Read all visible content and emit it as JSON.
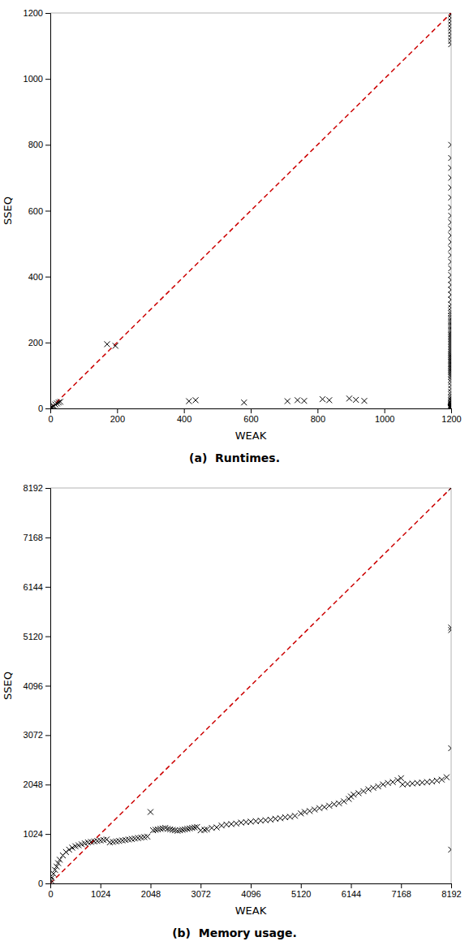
{
  "chart_data": [
    {
      "type": "scatter",
      "title": "(a)  Runtimes.",
      "x_label": "WEAK",
      "y_label": "SSEQ",
      "xlim": [
        0,
        1200
      ],
      "ylim": [
        0,
        1200
      ],
      "xticks": [
        0,
        200,
        400,
        600,
        800,
        1000,
        1200
      ],
      "yticks": [
        0,
        200,
        400,
        600,
        800,
        1000,
        1200
      ],
      "series": [
        {
          "type": "scatter",
          "marker": "x",
          "color": "#000000",
          "x": [
            2,
            4,
            6,
            8,
            10,
            15,
            20,
            25,
            30,
            170,
            195,
            415,
            435,
            580,
            710,
            740,
            760,
            815,
            835,
            895,
            915,
            940,
            1200,
            1200,
            1200,
            1200,
            1200,
            1200,
            1200,
            1200,
            1200,
            1200,
            1200,
            1200,
            1200,
            1200,
            1200,
            1200,
            1200,
            1200,
            1200,
            1200,
            1200,
            1200,
            1200,
            1200,
            1200,
            1200,
            1200,
            1200,
            1200,
            1200,
            1200,
            1200,
            1200,
            1200,
            1200,
            1200,
            1200,
            1200,
            1200,
            1200,
            1200,
            1200,
            1200,
            1200,
            1200,
            1200,
            1200,
            1200,
            1200,
            1200,
            1200,
            1200,
            1200,
            1200,
            1200,
            1200,
            1200,
            1200,
            1200,
            1200,
            1200,
            1200,
            1200,
            1200,
            1200,
            1200,
            1200,
            1200,
            1200,
            1200,
            1200,
            1200,
            1200,
            1200,
            1200,
            1200,
            1200,
            1200,
            1200,
            1200,
            1200,
            1200,
            1200,
            1200,
            1200,
            1200,
            1200,
            1200,
            1200,
            1200,
            1200,
            1200,
            1200,
            1200,
            1200,
            1200,
            1200,
            1200,
            1200,
            1200,
            1200,
            1200,
            1200,
            1200,
            1200,
            1200,
            1200,
            1200,
            1200,
            1200
          ],
          "values": [
            2,
            3,
            4,
            6,
            8,
            12,
            15,
            18,
            20,
            195,
            190,
            22,
            25,
            18,
            22,
            25,
            23,
            28,
            25,
            30,
            26,
            23,
            1195,
            1185,
            1175,
            1165,
            1155,
            1145,
            1135,
            1125,
            1115,
            1105,
            800,
            760,
            730,
            700,
            670,
            640,
            610,
            585,
            565,
            545,
            525,
            505,
            485,
            465,
            445,
            425,
            405,
            390,
            375,
            360,
            345,
            330,
            315,
            305,
            295,
            288,
            281,
            274,
            268,
            262,
            256,
            250,
            244,
            238,
            232,
            226,
            221,
            216,
            211,
            206,
            201,
            196,
            191,
            186,
            181,
            176,
            171,
            166,
            162,
            158,
            154,
            150,
            146,
            142,
            138,
            134,
            130,
            126,
            122,
            118,
            114,
            110,
            105,
            100,
            95,
            88,
            80,
            70,
            60,
            50,
            42,
            35,
            30,
            25,
            22,
            18,
            15,
            12,
            10,
            8,
            6,
            5,
            5,
            4,
            4,
            3,
            3,
            3,
            2,
            2,
            2,
            2,
            1,
            1,
            1,
            1,
            1,
            1,
            1,
            1
          ]
        },
        {
          "type": "line",
          "line_style": "dashed",
          "color": "#cc0000",
          "x": [
            0,
            1200
          ],
          "values": [
            0,
            1200
          ]
        }
      ]
    },
    {
      "type": "scatter",
      "title": "(b)  Memory usage.",
      "x_label": "WEAK",
      "y_label": "SSEQ",
      "xlim": [
        0,
        8192
      ],
      "ylim": [
        0,
        8192
      ],
      "xticks": [
        0,
        1024,
        2048,
        3072,
        4096,
        5120,
        6144,
        7168,
        8192
      ],
      "yticks": [
        0,
        1024,
        2048,
        3072,
        4096,
        5120,
        6144,
        7168,
        8192
      ],
      "series": [
        {
          "type": "scatter",
          "marker": "x",
          "color": "#000000",
          "x": [
            0,
            16,
            32,
            64,
            96,
            128,
            160,
            192,
            256,
            320,
            384,
            448,
            512,
            576,
            640,
            704,
            768,
            832,
            896,
            960,
            1024,
            1088,
            1152,
            1216,
            1280,
            1344,
            1408,
            1472,
            1536,
            1600,
            1664,
            1728,
            1792,
            1856,
            1920,
            1984,
            2048,
            2100,
            2150,
            2200,
            2250,
            2300,
            2350,
            2400,
            2450,
            2500,
            2550,
            2600,
            2650,
            2700,
            2750,
            2800,
            2850,
            2900,
            2950,
            3000,
            3072,
            3150,
            3200,
            3300,
            3400,
            3500,
            3600,
            3700,
            3800,
            3900,
            4000,
            4096,
            4200,
            4300,
            4400,
            4500,
            4600,
            4700,
            4800,
            4900,
            5000,
            5120,
            5200,
            5300,
            5400,
            5500,
            5600,
            5700,
            5800,
            5900,
            6000,
            6100,
            6144,
            6200,
            6300,
            6400,
            6500,
            6600,
            6700,
            6800,
            6900,
            7000,
            7100,
            7168,
            7200,
            7300,
            7400,
            7500,
            7600,
            7700,
            7800,
            7900,
            8000,
            8100,
            8192,
            8192,
            8192,
            8192,
            8192
          ],
          "values": [
            0,
            60,
            120,
            200,
            280,
            350,
            420,
            490,
            580,
            650,
            700,
            740,
            770,
            790,
            810,
            830,
            850,
            860,
            870,
            880,
            890,
            900,
            910,
            850,
            860,
            870,
            880,
            890,
            900,
            910,
            920,
            930,
            940,
            950,
            960,
            970,
            1480,
            1100,
            1110,
            1120,
            1130,
            1140,
            1150,
            1130,
            1120,
            1110,
            1100,
            1090,
            1100,
            1110,
            1120,
            1130,
            1140,
            1150,
            1160,
            1170,
            1100,
            1110,
            1120,
            1150,
            1160,
            1200,
            1220,
            1230,
            1240,
            1260,
            1270,
            1280,
            1290,
            1300,
            1310,
            1320,
            1340,
            1350,
            1370,
            1380,
            1400,
            1450,
            1480,
            1500,
            1530,
            1560,
            1580,
            1610,
            1640,
            1660,
            1700,
            1750,
            1800,
            1840,
            1870,
            1910,
            1950,
            1980,
            2010,
            2050,
            2080,
            2100,
            2140,
            2180,
            2050,
            2060,
            2070,
            2080,
            2090,
            2100,
            2110,
            2130,
            2150,
            2200,
            8192,
            5300,
            5250,
            2800,
            700
          ]
        },
        {
          "type": "line",
          "line_style": "dashed",
          "color": "#cc0000",
          "x": [
            0,
            8192
          ],
          "values": [
            0,
            8192
          ]
        }
      ]
    }
  ]
}
